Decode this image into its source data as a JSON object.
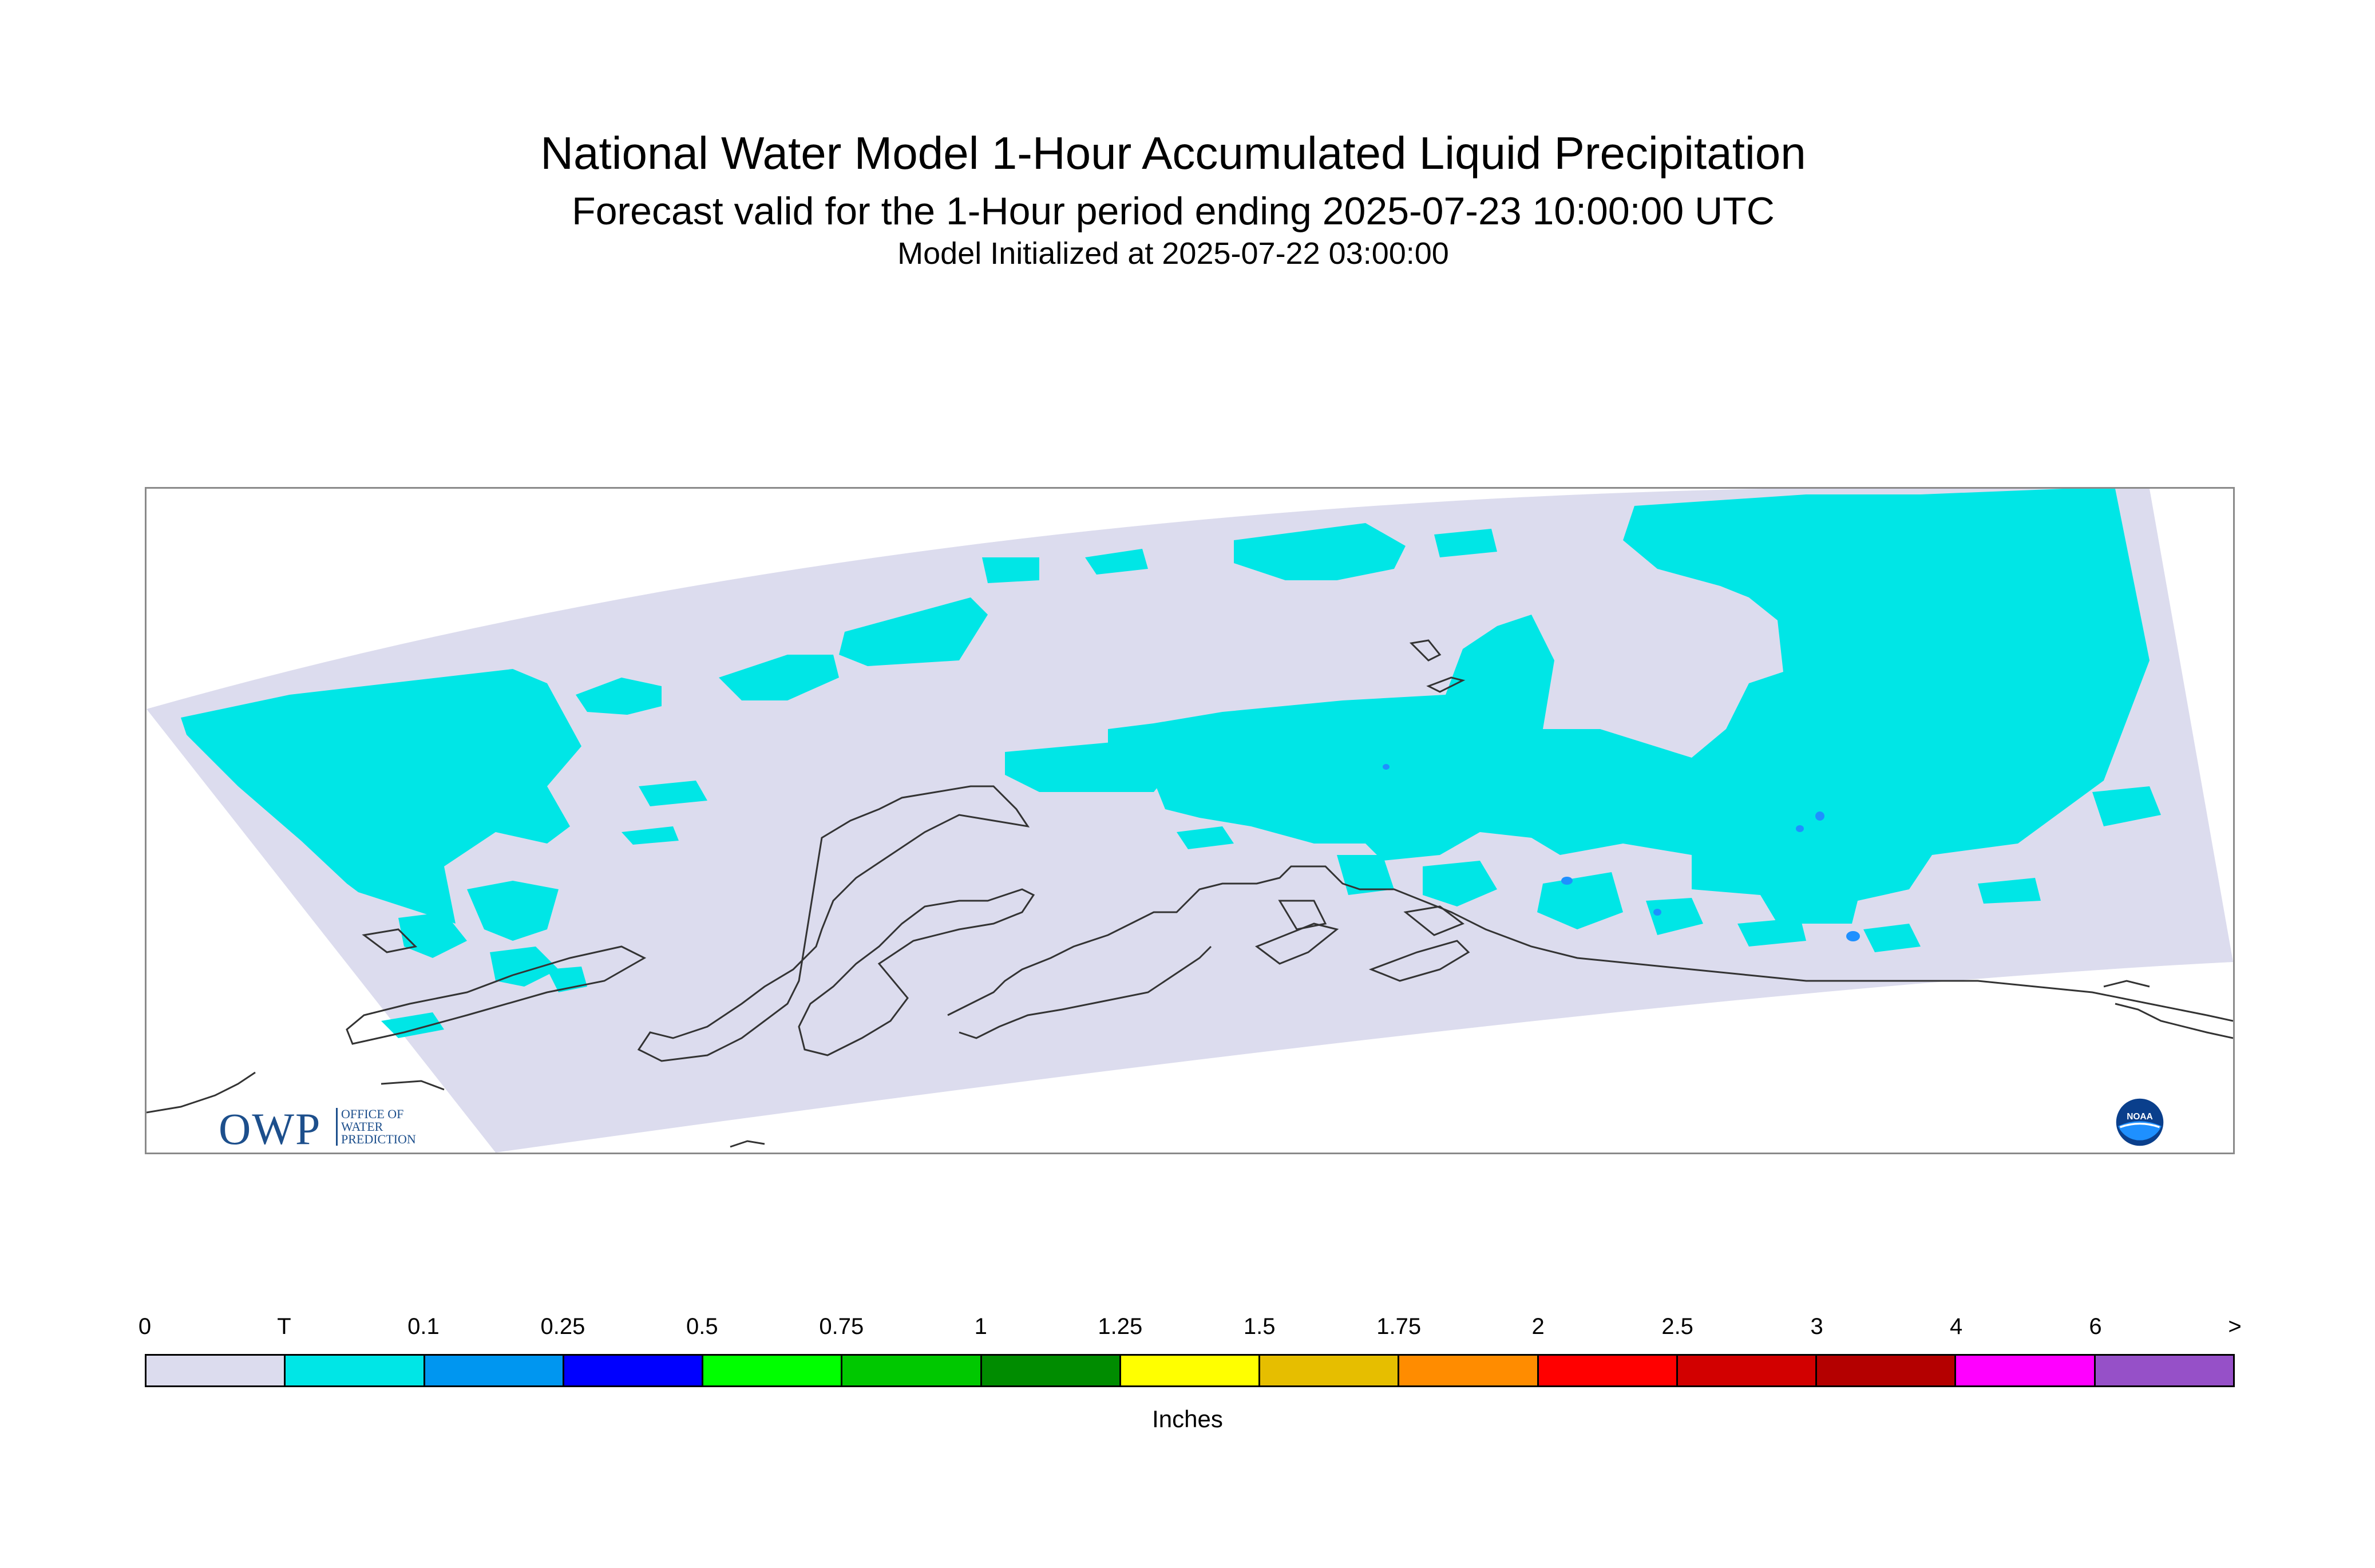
{
  "header": {
    "title": "National Water Model 1-Hour Accumulated Liquid Precipitation",
    "subtitle": "Forecast valid for the 1-Hour period ending 2025-07-23 10:00:00 UTC",
    "init_line": "Model Initialized at 2025-07-22 03:00:00"
  },
  "logos": {
    "owp_mark": "OWP",
    "owp_sub": [
      "OFFICE OF",
      "WATER",
      "PREDICTION"
    ],
    "noaa_mark": "NOAA"
  },
  "colors": {
    "domain_background": "#dcdcee",
    "trace_fill": "#00e6e6",
    "light_blue_fill": "#1e90ff",
    "coastline": "#333333"
  },
  "legend": {
    "tick_labels": [
      "0",
      "T",
      "0.1",
      "0.25",
      "0.5",
      "0.75",
      "1",
      "1.25",
      "1.5",
      "1.75",
      "2",
      "2.5",
      "3",
      "4",
      "6",
      ">"
    ],
    "colors": [
      "#dcdcee",
      "#00e6e6",
      "#0096f0",
      "#0000ff",
      "#00ff00",
      "#00c800",
      "#008c00",
      "#ffff00",
      "#e6be00",
      "#ff8c00",
      "#ff0000",
      "#d20000",
      "#b40000",
      "#ff00ff",
      "#9650c8"
    ],
    "units": "Inches"
  }
}
